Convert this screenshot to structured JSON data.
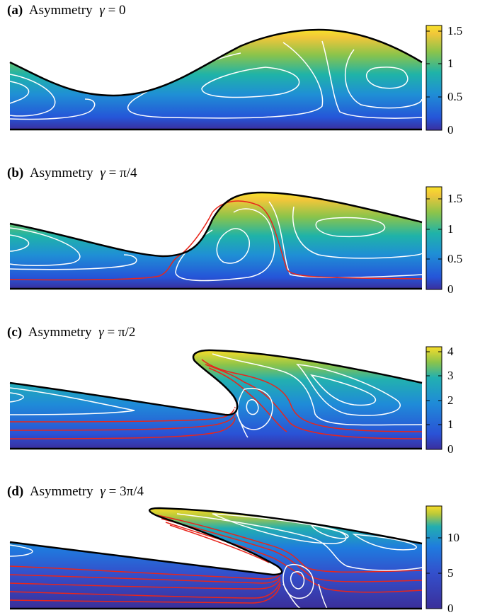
{
  "panels": [
    {
      "id": "a",
      "label": "(a)",
      "text": "Asymmetry",
      "gamma_symbol": "γ",
      "equals": " = ",
      "value": "0",
      "colorbar": {
        "ticks": [
          "1.5",
          "1",
          "0.5",
          "0"
        ],
        "range": [
          0,
          1.6
        ]
      }
    },
    {
      "id": "b",
      "label": "(b)",
      "text": "Asymmetry",
      "gamma_symbol": "γ",
      "equals": " = ",
      "value": "π/4",
      "colorbar": {
        "ticks": [
          "1.5",
          "1",
          "0.5",
          "0"
        ],
        "range": [
          0,
          1.7
        ]
      }
    },
    {
      "id": "c",
      "label": "(c)",
      "text": "Asymmetry",
      "gamma_symbol": "γ",
      "equals": " = ",
      "value": "π/2",
      "colorbar": {
        "ticks": [
          "4",
          "3",
          "2",
          "1",
          "0"
        ],
        "range": [
          0,
          4.2
        ]
      }
    },
    {
      "id": "d",
      "label": "(d)",
      "text": "Asymmetry",
      "gamma_symbol": "γ",
      "equals": " = ",
      "value": "3π/4",
      "colorbar": {
        "ticks": [
          "10",
          "5",
          "0"
        ],
        "range": [
          0,
          14.5
        ]
      }
    }
  ],
  "colors": {
    "low": "#3a2f9e",
    "mid_low": "#1f73d8",
    "mid": "#1fb3a8",
    "mid_high": "#9cc43f",
    "high": "#f6d82f",
    "contour_white": "#ffffff",
    "contour_red": "#e8261c",
    "outline": "#000000"
  }
}
